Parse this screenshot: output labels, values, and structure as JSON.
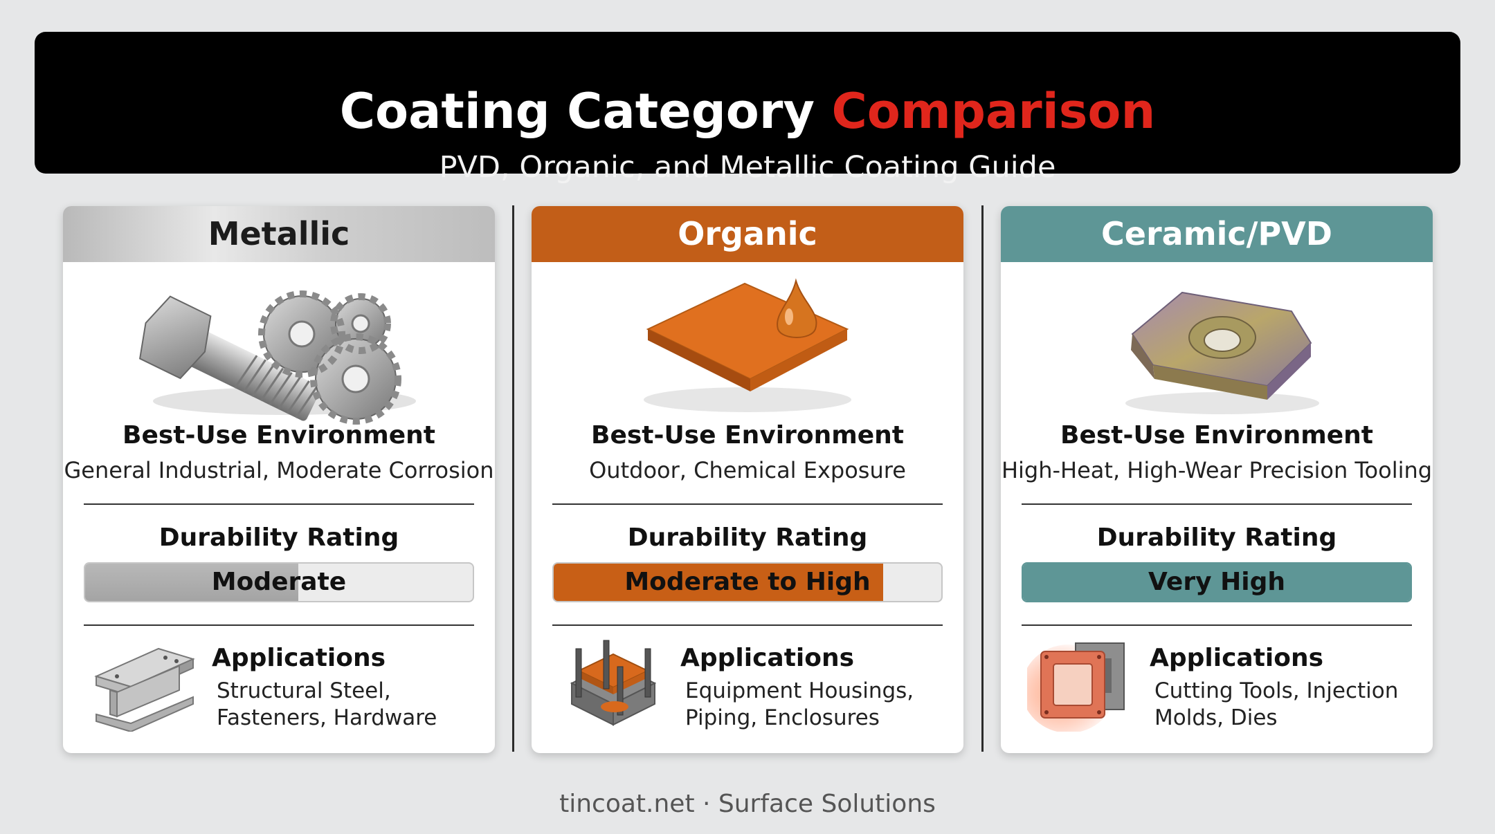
{
  "header": {
    "title_main": "Coating Category",
    "title_accent": "Comparison",
    "subtitle": "PVD, Organic, and Metallic Coating Guide"
  },
  "colors": {
    "accent": "#e0261c",
    "metallic": "#b0b0b0",
    "organic": "#c25e18",
    "ceramic": "#5e9696"
  },
  "cards": [
    {
      "name": "Metallic",
      "illustration": "bolt-and-gears-icon",
      "env_title": "Best-Use Environment",
      "env_text": "General Industrial, Moderate Corrosion",
      "durability_title": "Durability Rating",
      "durability_label": "Moderate",
      "durability_level": 0.55,
      "app_icon": "steel-i-beam-icon",
      "app_title": "Applications",
      "app_line1": "Structural Steel,",
      "app_line2": "Fasteners, Hardware"
    },
    {
      "name": "Organic",
      "illustration": "coated-plate-drop-icon",
      "env_title": "Best-Use Environment",
      "env_text": "Outdoor, Chemical Exposure",
      "durability_title": "Durability Rating",
      "durability_label": "Moderate to High",
      "durability_level": 0.85,
      "app_icon": "equipment-housing-icon",
      "app_title": "Applications",
      "app_line1": "Equipment Housings,",
      "app_line2": "Piping, Enclosures"
    },
    {
      "name": "Ceramic/PVD",
      "illustration": "cutting-insert-icon",
      "env_title": "Best-Use Environment",
      "env_text": "High-Heat, High-Wear Precision Tooling",
      "durability_title": "Durability Rating",
      "durability_label": "Very High",
      "durability_level": 1.0,
      "app_icon": "mold-die-icon",
      "app_title": "Applications",
      "app_line1": "Cutting Tools, Injection",
      "app_line2": "Molds, Dies"
    }
  ],
  "footer": "tincoat.net · Surface Solutions"
}
